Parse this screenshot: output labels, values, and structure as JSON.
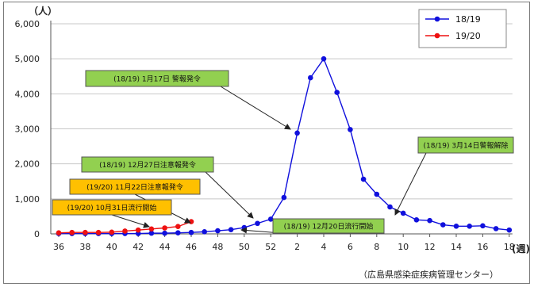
{
  "chart_data": {
    "type": "line",
    "title": "",
    "ylabel": "（人）",
    "xlabel": "(週)",
    "ylim": [
      0,
      6000
    ],
    "yticks": [
      "0",
      "1,000",
      "2,000",
      "3,000",
      "4,000",
      "5,000",
      "6,000"
    ],
    "xtick_labels": [
      "36",
      "38",
      "40",
      "42",
      "44",
      "46",
      "48",
      "50",
      "52",
      "2",
      "4",
      "6",
      "8",
      "10",
      "12",
      "14",
      "16",
      "18"
    ],
    "weeks": [
      "36",
      "37",
      "38",
      "39",
      "40",
      "41",
      "42",
      "43",
      "44",
      "45",
      "46",
      "47",
      "48",
      "49",
      "50",
      "51",
      "52",
      "1",
      "2",
      "3",
      "4",
      "5",
      "6",
      "7",
      "8",
      "9",
      "10",
      "11",
      "12",
      "13",
      "14",
      "15",
      "16",
      "17",
      "18"
    ],
    "series": [
      {
        "name": "18/19",
        "color": "#1010dd",
        "values": [
          10,
          10,
          10,
          10,
          10,
          10,
          10,
          20,
          20,
          30,
          40,
          60,
          90,
          120,
          180,
          300,
          420,
          1040,
          2880,
          4460,
          5000,
          4040,
          2980,
          1560,
          1130,
          770,
          590,
          400,
          380,
          260,
          220,
          220,
          230,
          150,
          110
        ]
      },
      {
        "name": "19/20",
        "color": "#ee1111",
        "values": [
          30,
          40,
          40,
          40,
          50,
          80,
          110,
          140,
          170,
          210,
          350
        ]
      }
    ],
    "annotations": [
      {
        "text": "(18/19) 1月17日 警報発令",
        "style": "green",
        "target_week_index": 19
      },
      {
        "text": "(18/19) 3月14日警報解除",
        "style": "green",
        "target_week_index": 27
      },
      {
        "text": "(18/19) 12月27日注意報発令",
        "style": "green",
        "target_week_index": 15
      },
      {
        "text": "(18/19) 12月20日流行開始",
        "style": "green",
        "target_week_index": 14
      },
      {
        "text": "(19/20) 11月22日注意報発令",
        "style": "orange",
        "target_week_index": 10
      },
      {
        "text": "(19/20) 10月31日流行開始",
        "style": "orange",
        "target_week_index": 7
      }
    ],
    "source": "（広島県感染症疾病管理センター）",
    "grid": true,
    "legend": "top-right",
    "annotation_colors": {
      "green": "#92d050",
      "orange": "#ffc000",
      "border": "#555555"
    }
  }
}
